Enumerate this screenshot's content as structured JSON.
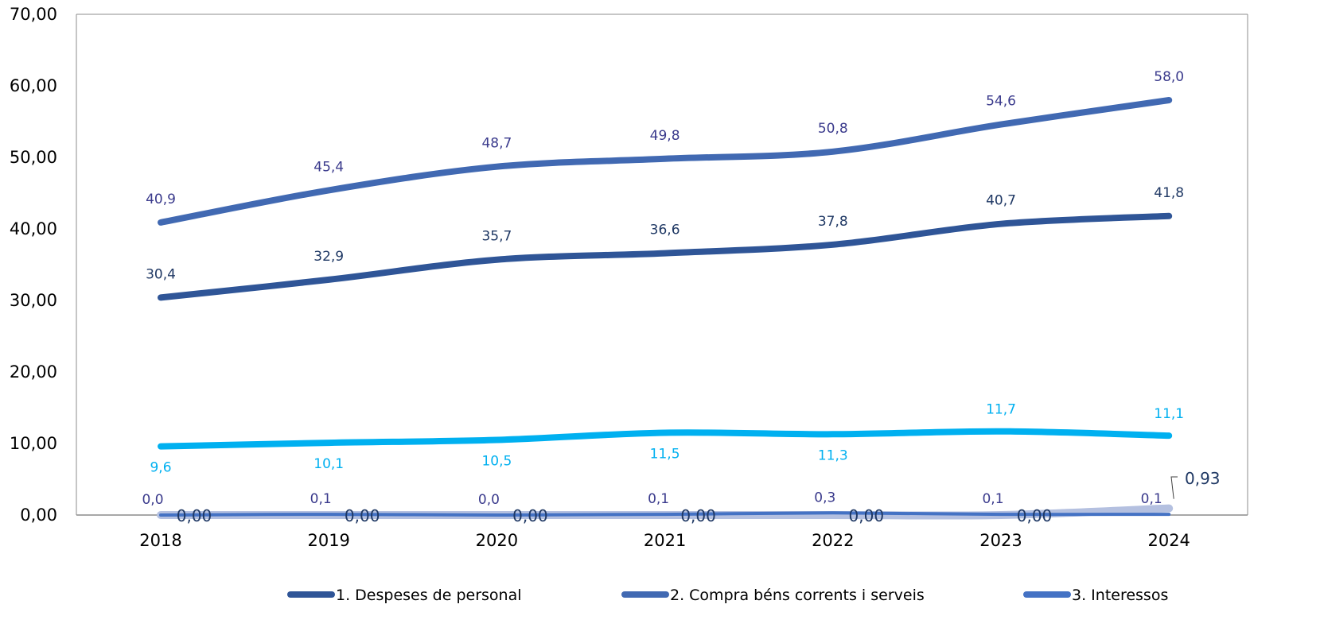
{
  "chart_data": {
    "type": "line",
    "categories": [
      "2018",
      "2019",
      "2020",
      "2021",
      "2022",
      "2023",
      "2024"
    ],
    "ylim": [
      0,
      70
    ],
    "yticks": [
      "0,00",
      "10,00",
      "20,00",
      "30,00",
      "40,00",
      "50,00",
      "60,00",
      "70,00"
    ],
    "grid": false,
    "legend_position": "bottom",
    "series": [
      {
        "name": "1. Despeses de personal",
        "color": "#2f5597",
        "label_color": "#1f3864",
        "values": [
          30.4,
          32.9,
          35.7,
          36.6,
          37.8,
          40.7,
          41.8
        ],
        "labels": [
          "30,4",
          "32,9",
          "35,7",
          "36,6",
          "37,8",
          "40,7",
          "41,8"
        ]
      },
      {
        "name": "2. Compra béns corrents i serveis",
        "color": "#4169b2",
        "label_color": "#3a3a8c",
        "values": [
          40.9,
          45.4,
          48.7,
          49.8,
          50.8,
          54.6,
          58.0
        ],
        "labels": [
          "40,9",
          "45,4",
          "48,7",
          "49,8",
          "50,8",
          "54,6",
          "58,0"
        ]
      },
      {
        "name": "3. Interessos",
        "color": "#00b0f0",
        "label_color": "#00b0f0",
        "legend_color": "#4472c4",
        "values": [
          9.6,
          10.1,
          10.5,
          11.5,
          11.3,
          11.7,
          11.1
        ],
        "labels": [
          "9,6",
          "10,1",
          "10,5",
          "11,5",
          "11,3",
          "11,7",
          "11,1"
        ]
      },
      {
        "color": "#4472c4",
        "label_color": "#3a3a8c",
        "values": [
          0.0,
          0.1,
          0.0,
          0.1,
          0.3,
          0.1,
          0.1
        ],
        "labels": [
          "0,0",
          "0,1",
          "0,0",
          "0,1",
          "0,3",
          "0,1",
          "0,1"
        ]
      },
      {
        "color": "#b4c0e0",
        "label_color": "#1f3864",
        "values": [
          0.0,
          0.0,
          0.0,
          0.0,
          0.0,
          0.0,
          0.93
        ],
        "labels": [
          "0,00",
          "0,00",
          "0,00",
          "0,00",
          "0,00",
          "0,00",
          "0,93"
        ]
      }
    ]
  }
}
